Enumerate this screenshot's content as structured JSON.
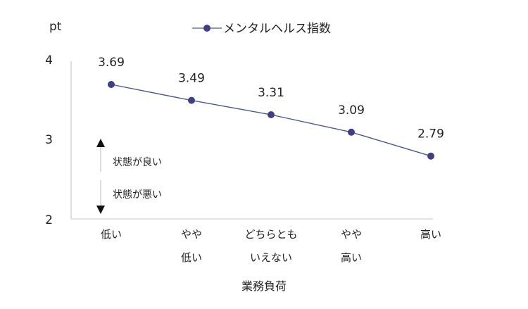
{
  "chart_data": {
    "type": "line",
    "unit_label": "pt",
    "xlabel": "業務負荷",
    "categories": [
      [
        "低い"
      ],
      [
        "やや",
        "低い"
      ],
      [
        "どちらとも",
        "いえない"
      ],
      [
        "やや",
        "高い"
      ],
      [
        "高い"
      ]
    ],
    "series": [
      {
        "name": "メンタルヘルス指数",
        "values": [
          3.69,
          3.49,
          3.31,
          3.09,
          2.79
        ],
        "color": "#3f3f82"
      }
    ],
    "data_labels": [
      "3.69",
      "3.49",
      "3.31",
      "3.09",
      "2.79"
    ],
    "ylim": [
      2,
      4
    ],
    "yticks": [
      "2",
      "3",
      "4"
    ],
    "grid": false,
    "legend_position": "top-center",
    "annotations": {
      "up": "状態が良い",
      "down": "状態が悪い"
    },
    "line_color": "#4a5a85",
    "axis_color": "#d0d0d0"
  }
}
